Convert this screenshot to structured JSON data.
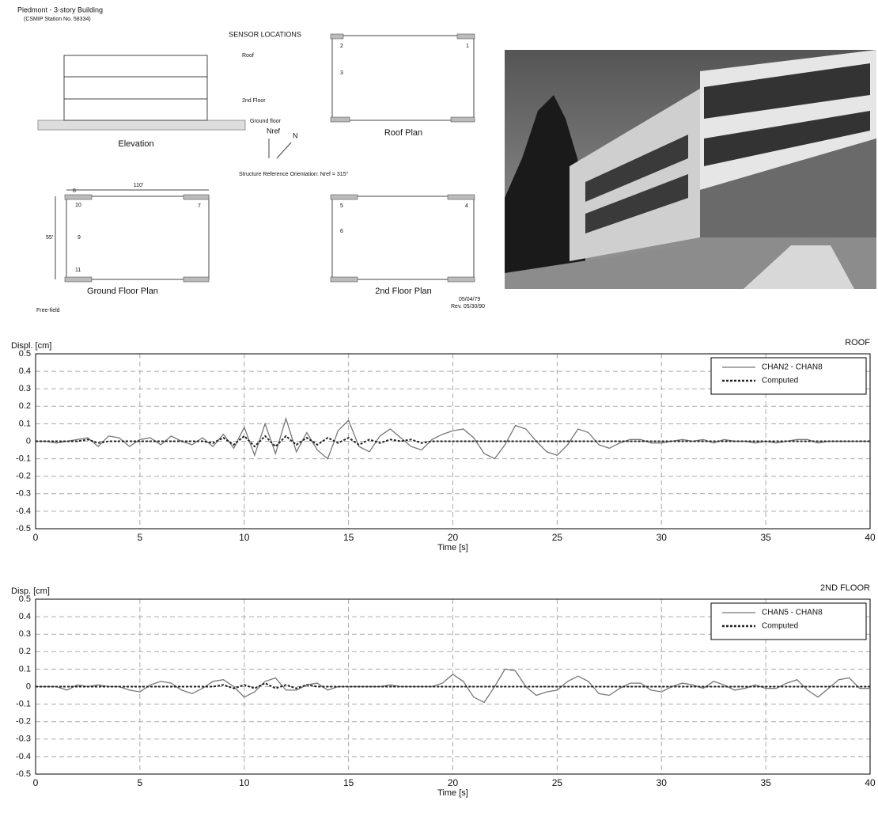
{
  "header": {
    "title": "Piedmont - 3-story Building",
    "subtitle": "(CSMIP Station No. 58334)"
  },
  "diagram": {
    "heading": "SENSOR LOCATIONS",
    "elevation": {
      "label": "Elevation",
      "levels": [
        "Roof",
        "2nd Floor",
        "Ground floor"
      ]
    },
    "plans": [
      "Roof Plan",
      "Ground Floor Plan",
      "2nd Floor Plan"
    ],
    "orientation": {
      "north": "N",
      "ref": "Nref",
      "text": "Structure Reference Orientation: Nref = 315°"
    },
    "dimensions": [
      "110'",
      "55'"
    ],
    "free_field": "Free-field",
    "dates": [
      "05/04/79",
      "Rev. 05/30/90"
    ],
    "sensors": [
      "1",
      "2",
      "3",
      "4",
      "5",
      "6",
      "7",
      "8",
      "9",
      "10",
      "11"
    ]
  },
  "chart_data": [
    {
      "type": "line",
      "y_label": "Displ. [cm]",
      "annotation": "ROOF",
      "x_label": "Time [s]",
      "x": [
        0,
        0.5,
        1,
        1.5,
        2,
        2.5,
        3,
        3.5,
        4,
        4.5,
        5,
        5.5,
        6,
        6.5,
        7,
        7.5,
        8,
        8.5,
        9,
        9.5,
        10,
        10.5,
        11,
        11.5,
        12,
        12.5,
        13,
        13.5,
        14,
        14.5,
        15,
        15.5,
        16,
        16.5,
        17,
        17.5,
        18,
        18.5,
        19,
        19.5,
        20,
        20.5,
        21,
        21.5,
        22,
        22.5,
        23,
        23.5,
        24,
        24.5,
        25,
        25.5,
        26,
        26.5,
        27,
        27.5,
        28,
        28.5,
        29,
        29.5,
        30,
        30.5,
        31,
        31.5,
        32,
        32.5,
        33,
        33.5,
        34,
        34.5,
        35,
        35.5,
        36,
        36.5,
        37,
        37.5,
        38,
        38.5,
        39,
        39.5,
        40
      ],
      "series": [
        {
          "name": "CHAN2 - CHAN8",
          "color": "#777777",
          "line_style": "solid",
          "values": [
            0,
            0,
            -0.01,
            0,
            0.01,
            0.02,
            -0.03,
            0.03,
            0.02,
            -0.03,
            0.01,
            0.02,
            -0.02,
            0.03,
            0,
            -0.02,
            0.02,
            -0.03,
            0.04,
            -0.04,
            0.08,
            -0.08,
            0.1,
            -0.07,
            0.13,
            -0.06,
            0.05,
            -0.05,
            -0.1,
            0.06,
            0.12,
            -0.03,
            -0.06,
            0.03,
            0.07,
            0.02,
            -0.03,
            -0.05,
            0.01,
            0.04,
            0.06,
            0.07,
            0.02,
            -0.07,
            -0.1,
            -0.02,
            0.09,
            0.07,
            0,
            -0.06,
            -0.08,
            -0.02,
            0.07,
            0.05,
            -0.02,
            -0.04,
            -0.01,
            0.01,
            0.01,
            -0.01,
            -0.01,
            0,
            0.01,
            0,
            0.01,
            -0.01,
            0.01,
            0,
            0,
            -0.01,
            0,
            -0.01,
            0,
            0.01,
            0.01,
            -0.01,
            0,
            0,
            0,
            0,
            0
          ]
        },
        {
          "name": "Computed",
          "color": "#222222",
          "line_style": "dotted",
          "values": [
            0,
            0,
            0,
            0,
            0,
            0.01,
            -0.01,
            0,
            0,
            0,
            0,
            0,
            0,
            0,
            0,
            0,
            0,
            -0.01,
            0.02,
            -0.02,
            0.03,
            -0.03,
            0.03,
            -0.03,
            0.03,
            -0.02,
            0.02,
            -0.02,
            0.02,
            -0.01,
            0.02,
            -0.02,
            0.01,
            -0.01,
            0.01,
            0,
            0.01,
            -0.01,
            0,
            0,
            0,
            0,
            0,
            0,
            0,
            0,
            0,
            0,
            0,
            0,
            0,
            0,
            0,
            0,
            0,
            0,
            0,
            0,
            0,
            0,
            0,
            0,
            0,
            0,
            0,
            0,
            0,
            0,
            0,
            0,
            0,
            0,
            0,
            0,
            0,
            0,
            0,
            0,
            0,
            0,
            0
          ]
        }
      ],
      "xlim": [
        0,
        40
      ],
      "xticks": [
        0,
        5,
        10,
        15,
        20,
        25,
        30,
        35,
        40
      ],
      "ylim": [
        -0.5,
        0.5
      ],
      "yticks": [
        0.5,
        0.4,
        0.3,
        0.2,
        0.1,
        0,
        -0.1,
        -0.2,
        -0.3,
        -0.4,
        -0.5
      ],
      "grid": true,
      "legend": "upper right"
    },
    {
      "type": "line",
      "y_label": "Disp. [cm]",
      "annotation": "2ND FLOOR",
      "x_label": "Time [s]",
      "x": [
        0,
        0.5,
        1,
        1.5,
        2,
        2.5,
        3,
        3.5,
        4,
        4.5,
        5,
        5.5,
        6,
        6.5,
        7,
        7.5,
        8,
        8.5,
        9,
        9.5,
        10,
        10.5,
        11,
        11.5,
        12,
        12.5,
        13,
        13.5,
        14,
        14.5,
        15,
        15.5,
        16,
        16.5,
        17,
        17.5,
        18,
        18.5,
        19,
        19.5,
        20,
        20.5,
        21,
        21.5,
        22,
        22.5,
        23,
        23.5,
        24,
        24.5,
        25,
        25.5,
        26,
        26.5,
        27,
        27.5,
        28,
        28.5,
        29,
        29.5,
        30,
        30.5,
        31,
        31.5,
        32,
        32.5,
        33,
        33.5,
        34,
        34.5,
        35,
        35.5,
        36,
        36.5,
        37,
        37.5,
        38,
        38.5,
        39,
        39.5,
        40
      ],
      "series": [
        {
          "name": "CHAN5 - CHAN8",
          "color": "#777777",
          "line_style": "solid",
          "values": [
            0,
            0,
            0,
            -0.02,
            0.01,
            0,
            0.01,
            0,
            0,
            -0.02,
            -0.03,
            0.01,
            0.03,
            0.02,
            -0.02,
            -0.04,
            -0.01,
            0.03,
            0.04,
            0,
            -0.06,
            -0.03,
            0.03,
            0.05,
            -0.02,
            -0.02,
            0.01,
            0.02,
            -0.02,
            0,
            0,
            0,
            0,
            0,
            0.01,
            0,
            0,
            0,
            0,
            0.02,
            0.07,
            0.03,
            -0.06,
            -0.09,
            0,
            0.1,
            0.09,
            0,
            -0.05,
            -0.03,
            -0.02,
            0.03,
            0.06,
            0.03,
            -0.04,
            -0.05,
            -0.01,
            0.02,
            0.02,
            -0.02,
            -0.03,
            0,
            0.02,
            0.01,
            -0.01,
            0.03,
            0.01,
            -0.02,
            -0.01,
            0.01,
            -0.01,
            -0.01,
            0.02,
            0.04,
            -0.02,
            -0.06,
            -0.01,
            0.04,
            0.05,
            -0.01,
            -0.01
          ]
        },
        {
          "name": "Computed",
          "color": "#222222",
          "line_style": "dotted",
          "values": [
            0,
            0,
            0,
            0,
            0,
            0,
            0,
            0,
            0,
            0,
            0,
            0,
            0,
            0,
            0,
            0,
            0,
            0,
            0.01,
            -0.01,
            0.01,
            -0.01,
            0.02,
            -0.01,
            0.01,
            -0.01,
            0.01,
            0,
            0,
            0,
            0,
            0,
            0,
            0,
            0,
            0,
            0,
            0,
            0,
            0,
            0,
            0,
            0,
            0,
            0,
            0,
            0,
            0,
            0,
            0,
            0,
            0,
            0,
            0,
            0,
            0,
            0,
            0,
            0,
            0,
            0,
            0,
            0,
            0,
            0,
            0,
            0,
            0,
            0,
            0,
            0,
            0,
            0,
            0,
            0,
            0,
            0,
            0,
            0,
            0,
            0
          ]
        }
      ],
      "xlim": [
        0,
        40
      ],
      "xticks": [
        0,
        5,
        10,
        15,
        20,
        25,
        30,
        35,
        40
      ],
      "ylim": [
        -0.5,
        0.5
      ],
      "yticks": [
        0.5,
        0.4,
        0.3,
        0.2,
        0.1,
        0,
        -0.1,
        -0.2,
        -0.3,
        -0.4,
        -0.5
      ],
      "grid": true,
      "legend": "upper right"
    }
  ]
}
